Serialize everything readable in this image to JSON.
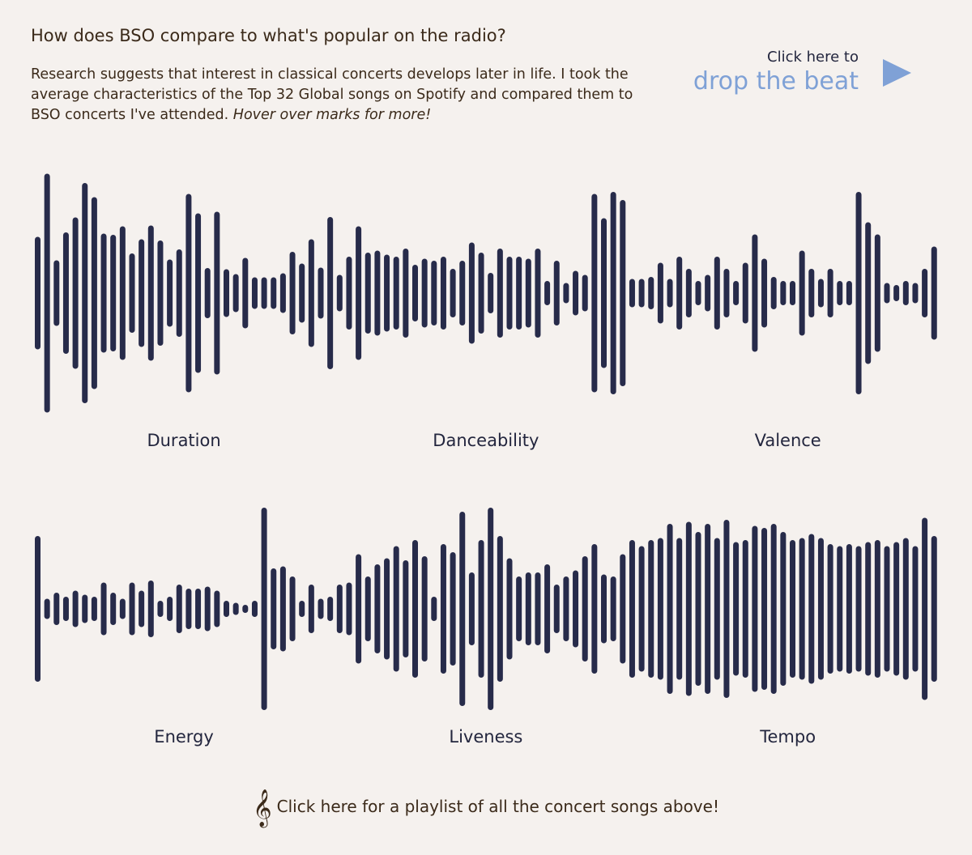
{
  "header": {
    "title": "How does BSO compare to what's popular on the radio?",
    "description": "Research suggests that interest in classical concerts develops later in life. I took the average characteristics of the Top 32 Global songs on Spotify and compared them to BSO concerts I've attended.",
    "description_em": "Hover over marks for more!",
    "cta_small": "Click here to",
    "cta_big": "drop the beat"
  },
  "footer": "Click here for a playlist of all the concert songs above!",
  "chart_data": [
    {
      "type": "bar",
      "title": "Duration",
      "color": "#272b4a",
      "ylim": [
        0,
        300
      ],
      "values": [
        139,
        295,
        81,
        150,
        187,
        272,
        237,
        147,
        144,
        165,
        98,
        133,
        167,
        130,
        83,
        108,
        245,
        197,
        62,
        201,
        59,
        47,
        87,
        39,
        39,
        39,
        49,
        102,
        73,
        133,
        63,
        188
      ]
    },
    {
      "type": "bar",
      "title": "Danceability",
      "color": "#272b4a",
      "ylim": [
        0,
        300
      ],
      "values": [
        45,
        90,
        165,
        100,
        105,
        95,
        90,
        110,
        70,
        85,
        80,
        90,
        60,
        80,
        125,
        100,
        50,
        110,
        90,
        90,
        85,
        110,
        30,
        80,
        25,
        55,
        45,
        245,
        185,
        250,
        230,
        35
      ]
    },
    {
      "type": "bar",
      "title": "Valence",
      "color": "#272b4a",
      "ylim": [
        0,
        300
      ],
      "values": [
        35,
        40,
        75,
        35,
        90,
        60,
        30,
        45,
        90,
        60,
        30,
        75,
        145,
        85,
        40,
        30,
        30,
        105,
        60,
        35,
        60,
        30,
        30,
        250,
        175,
        145,
        25,
        20,
        30,
        25,
        60,
        115
      ]
    },
    {
      "type": "bar",
      "title": "Energy",
      "color": "#272b4a",
      "ylim": [
        0,
        300
      ],
      "values": [
        180,
        25,
        40,
        30,
        45,
        35,
        30,
        65,
        40,
        25,
        65,
        45,
        70,
        20,
        30,
        60,
        50,
        50,
        55,
        45,
        20,
        15,
        10,
        20,
        250,
        100,
        105,
        80,
        20,
        60,
        25,
        30
      ]
    },
    {
      "type": "bar",
      "title": "Liveness",
      "color": "#272b4a",
      "ylim": [
        0,
        300
      ],
      "values": [
        60,
        65,
        135,
        80,
        110,
        125,
        155,
        120,
        170,
        130,
        30,
        160,
        140,
        240,
        90,
        170,
        250,
        180,
        125,
        80,
        90,
        90,
        110,
        60,
        80,
        95,
        130,
        160,
        85,
        80,
        135,
        170
      ]
    },
    {
      "type": "bar",
      "title": "Tempo",
      "color": "#272b4a",
      "ylim": [
        0,
        300
      ],
      "values": [
        155,
        170,
        175,
        210,
        175,
        215,
        190,
        210,
        175,
        220,
        165,
        170,
        205,
        200,
        210,
        190,
        170,
        175,
        185,
        175,
        160,
        155,
        160,
        155,
        165,
        170,
        155,
        165,
        175,
        155,
        225,
        180
      ]
    }
  ]
}
